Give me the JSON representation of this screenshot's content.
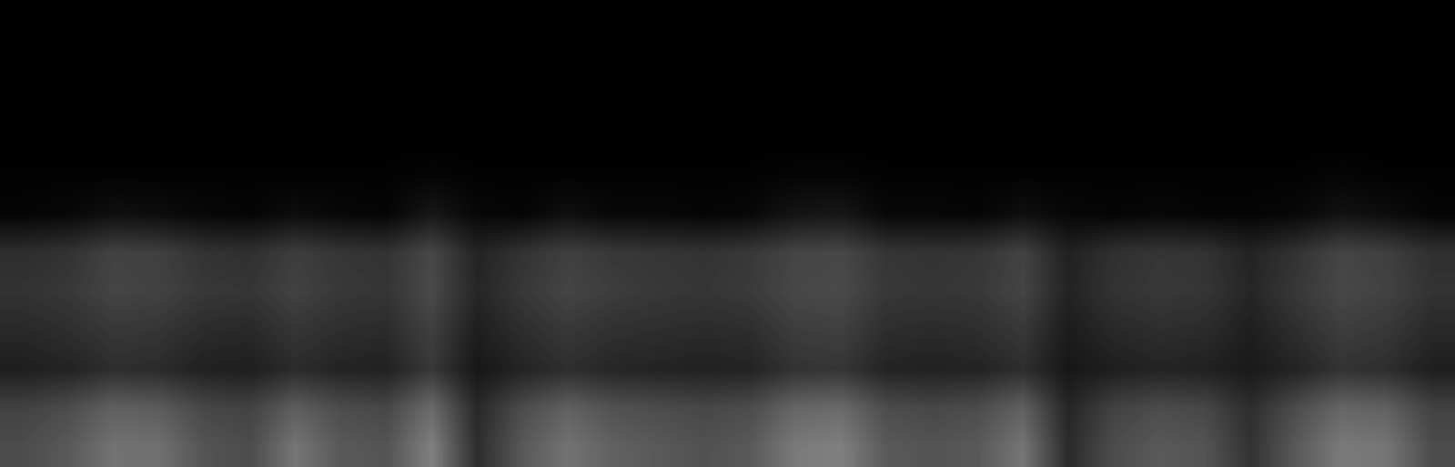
{
  "chart_data": {
    "type": "heatmap",
    "tick_labels": false,
    "color": "gray",
    "clim": [
      0,
      100
    ],
    "cells": [
      [
        0,
        0,
        0,
        0,
        0,
        0,
        0,
        0,
        0,
        0,
        0,
        0,
        0,
        0,
        0,
        0,
        0,
        0,
        0,
        0,
        0,
        0,
        0,
        0,
        0,
        0,
        0,
        0,
        0,
        0,
        0,
        0
      ],
      [
        0,
        0,
        0,
        0,
        0,
        0,
        0,
        0,
        0,
        0,
        0,
        0,
        0,
        0,
        0,
        0,
        0,
        0,
        0,
        0,
        0,
        0,
        0,
        0,
        0,
        0,
        0,
        0,
        0,
        0,
        0,
        0
      ],
      [
        0,
        0,
        0,
        0,
        0,
        0,
        0,
        0,
        0,
        0,
        0,
        0,
        0,
        0,
        0,
        0,
        0,
        0,
        0,
        0,
        0,
        0,
        0,
        0,
        0,
        0,
        0,
        0,
        0,
        0,
        0,
        0
      ],
      [
        0,
        0,
        0,
        0,
        0,
        0,
        0,
        0,
        0,
        0,
        0,
        0,
        0,
        0,
        0,
        0,
        0,
        0,
        0,
        0,
        0,
        0,
        0,
        0,
        0,
        0,
        0,
        0,
        0,
        0,
        0,
        0
      ],
      [
        1,
        1,
        1,
        1,
        1,
        1,
        1,
        1,
        1,
        2,
        1,
        1,
        1,
        1,
        1,
        1,
        1,
        2,
        2,
        1,
        1,
        1,
        1,
        1,
        1,
        1,
        1,
        1,
        1,
        2,
        1,
        1
      ],
      [
        2,
        3,
        6,
        5,
        3,
        2,
        5,
        3,
        2,
        9,
        3,
        2,
        6,
        3,
        3,
        2,
        3,
        8,
        9,
        3,
        3,
        2,
        6,
        3,
        2,
        3,
        2,
        2,
        3,
        7,
        5,
        2
      ],
      [
        18,
        20,
        26,
        25,
        20,
        19,
        24,
        21,
        20,
        28,
        14,
        20,
        25,
        22,
        21,
        20,
        22,
        27,
        28,
        21,
        20,
        21,
        26,
        13,
        19,
        21,
        20,
        14,
        20,
        27,
        25,
        19
      ],
      [
        20,
        22,
        27,
        26,
        22,
        21,
        26,
        22,
        21,
        29,
        15,
        22,
        27,
        24,
        22,
        21,
        23,
        28,
        29,
        22,
        21,
        22,
        27,
        14,
        20,
        22,
        21,
        15,
        22,
        28,
        26,
        20
      ],
      [
        16,
        18,
        22,
        21,
        17,
        16,
        21,
        18,
        17,
        25,
        12,
        18,
        22,
        19,
        18,
        17,
        18,
        24,
        25,
        18,
        17,
        18,
        22,
        11,
        16,
        18,
        17,
        12,
        18,
        24,
        22,
        16
      ],
      [
        12,
        14,
        18,
        17,
        13,
        12,
        17,
        14,
        13,
        22,
        9,
        14,
        18,
        15,
        14,
        13,
        14,
        20,
        21,
        14,
        13,
        14,
        18,
        9,
        12,
        14,
        13,
        10,
        14,
        20,
        18,
        12
      ],
      [
        26,
        30,
        38,
        36,
        28,
        26,
        37,
        30,
        28,
        42,
        16,
        30,
        38,
        32,
        30,
        28,
        30,
        40,
        42,
        30,
        28,
        30,
        38,
        15,
        26,
        30,
        28,
        18,
        30,
        40,
        38,
        26
      ],
      [
        30,
        35,
        45,
        44,
        33,
        30,
        46,
        35,
        33,
        50,
        18,
        35,
        45,
        38,
        35,
        32,
        35,
        48,
        50,
        35,
        33,
        35,
        46,
        17,
        30,
        35,
        33,
        20,
        35,
        48,
        46,
        30
      ]
    ]
  }
}
